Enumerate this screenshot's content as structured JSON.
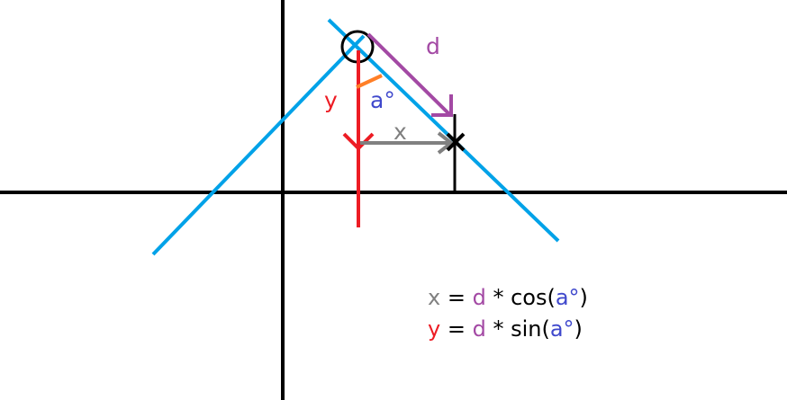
{
  "labels": {
    "d": "d",
    "y": "y",
    "a": "a°",
    "x": "x"
  },
  "formulas": [
    {
      "parts": [
        {
          "text": "x",
          "color": "#808080"
        },
        {
          "text": " = ",
          "color": "#000000"
        },
        {
          "text": "d",
          "color": "#a349a4"
        },
        {
          "text": " * cos(",
          "color": "#000000"
        },
        {
          "text": "a°",
          "color": "#3f48cc"
        },
        {
          "text": ")",
          "color": "#000000"
        }
      ]
    },
    {
      "parts": [
        {
          "text": "y",
          "color": "#ed1c24"
        },
        {
          "text": " = ",
          "color": "#000000"
        },
        {
          "text": "d",
          "color": "#a349a4"
        },
        {
          "text": " * sin(",
          "color": "#000000"
        },
        {
          "text": "a°",
          "color": "#3f48cc"
        },
        {
          "text": ")",
          "color": "#000000"
        }
      ]
    }
  ],
  "colors": {
    "axis": "#000000",
    "line": "#00a2e8",
    "d": "#a349a4",
    "y": "#ed1c24",
    "x": "#808080",
    "angle": "#ff7f27",
    "a": "#3f48cc"
  }
}
